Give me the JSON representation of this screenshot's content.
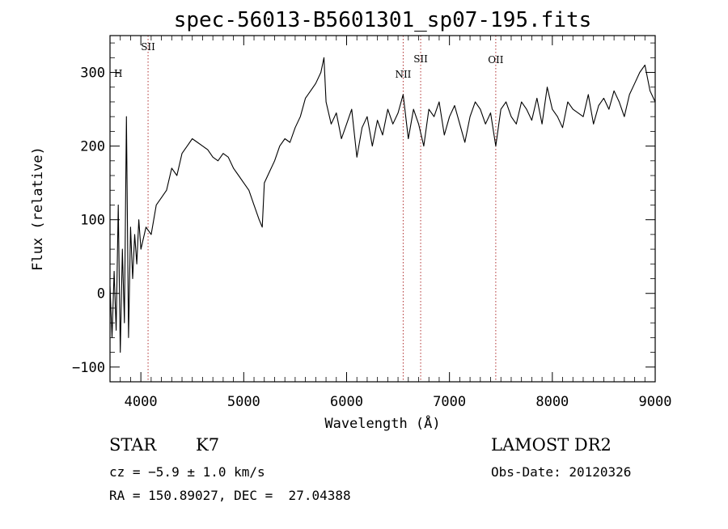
{
  "chart_data": {
    "type": "line",
    "title": "spec-56013-B5601301_sp07-195.fits",
    "xlabel": "Wavelength (Å)",
    "ylabel": "Flux (relative)",
    "xlim": [
      3700,
      9000
    ],
    "ylim": [
      -120,
      350
    ],
    "x_ticks": [
      4000,
      5000,
      6000,
      7000,
      8000,
      9000
    ],
    "y_ticks": [
      -100,
      0,
      100,
      200,
      300
    ],
    "grid": false,
    "series": [
      {
        "x": [
          3700,
          3720,
          3740,
          3760,
          3780,
          3800,
          3820,
          3840,
          3860,
          3880,
          3900,
          3920,
          3940,
          3960,
          3980,
          4000,
          4050,
          4100,
          4150,
          4200,
          4250,
          4300,
          4350,
          4400,
          4450,
          4500,
          4550,
          4600,
          4650,
          4700,
          4750,
          4800,
          4850,
          4900,
          4950,
          5000,
          5050,
          5100,
          5150,
          5180,
          5200,
          5250,
          5300,
          5350,
          5400,
          5450,
          5500,
          5550,
          5600,
          5650,
          5700,
          5750,
          5780,
          5800,
          5850,
          5900,
          5950,
          6000,
          6050,
          6100,
          6150,
          6200,
          6250,
          6300,
          6350,
          6400,
          6450,
          6500,
          6550,
          6600,
          6650,
          6700,
          6750,
          6800,
          6850,
          6900,
          6950,
          7000,
          7050,
          7100,
          7150,
          7200,
          7250,
          7300,
          7350,
          7400,
          7450,
          7500,
          7550,
          7600,
          7650,
          7700,
          7750,
          7800,
          7850,
          7900,
          7950,
          8000,
          8050,
          8100,
          8150,
          8200,
          8250,
          8300,
          8350,
          8400,
          8450,
          8500,
          8550,
          8600,
          8650,
          8700,
          8750,
          8800,
          8850,
          8900,
          8950,
          9000
        ],
        "y": [
          10,
          -60,
          30,
          -50,
          120,
          -80,
          60,
          -40,
          240,
          -60,
          90,
          20,
          80,
          40,
          100,
          60,
          90,
          80,
          120,
          130,
          140,
          170,
          160,
          190,
          200,
          210,
          205,
          200,
          195,
          185,
          180,
          190,
          185,
          170,
          160,
          150,
          140,
          120,
          100,
          90,
          150,
          165,
          180,
          200,
          210,
          205,
          225,
          240,
          265,
          275,
          285,
          300,
          320,
          260,
          230,
          245,
          210,
          230,
          250,
          185,
          225,
          240,
          200,
          235,
          215,
          250,
          230,
          245,
          270,
          210,
          250,
          230,
          200,
          250,
          240,
          260,
          215,
          240,
          255,
          230,
          205,
          240,
          260,
          250,
          230,
          245,
          200,
          250,
          260,
          240,
          230,
          260,
          250,
          235,
          265,
          230,
          280,
          250,
          240,
          225,
          260,
          250,
          245,
          240,
          270,
          230,
          255,
          265,
          250,
          275,
          260,
          240,
          270,
          285,
          300,
          310,
          275,
          260
        ]
      }
    ],
    "lines": [
      {
        "label": "SII",
        "x": 4070
      },
      {
        "label": "NII",
        "x": 6550
      },
      {
        "label": "SII",
        "x": 6720
      },
      {
        "label": "OII",
        "x": 7450
      }
    ],
    "edge_label": "H"
  },
  "info": {
    "class": "STAR",
    "subclass": "K7",
    "survey": "LAMOST DR2",
    "cz": "cz = −5.9 ± 1.0 km/s",
    "obs_date": "Obs-Date: 20120326",
    "coords": "RA = 150.89027, DEC =  27.04388"
  }
}
